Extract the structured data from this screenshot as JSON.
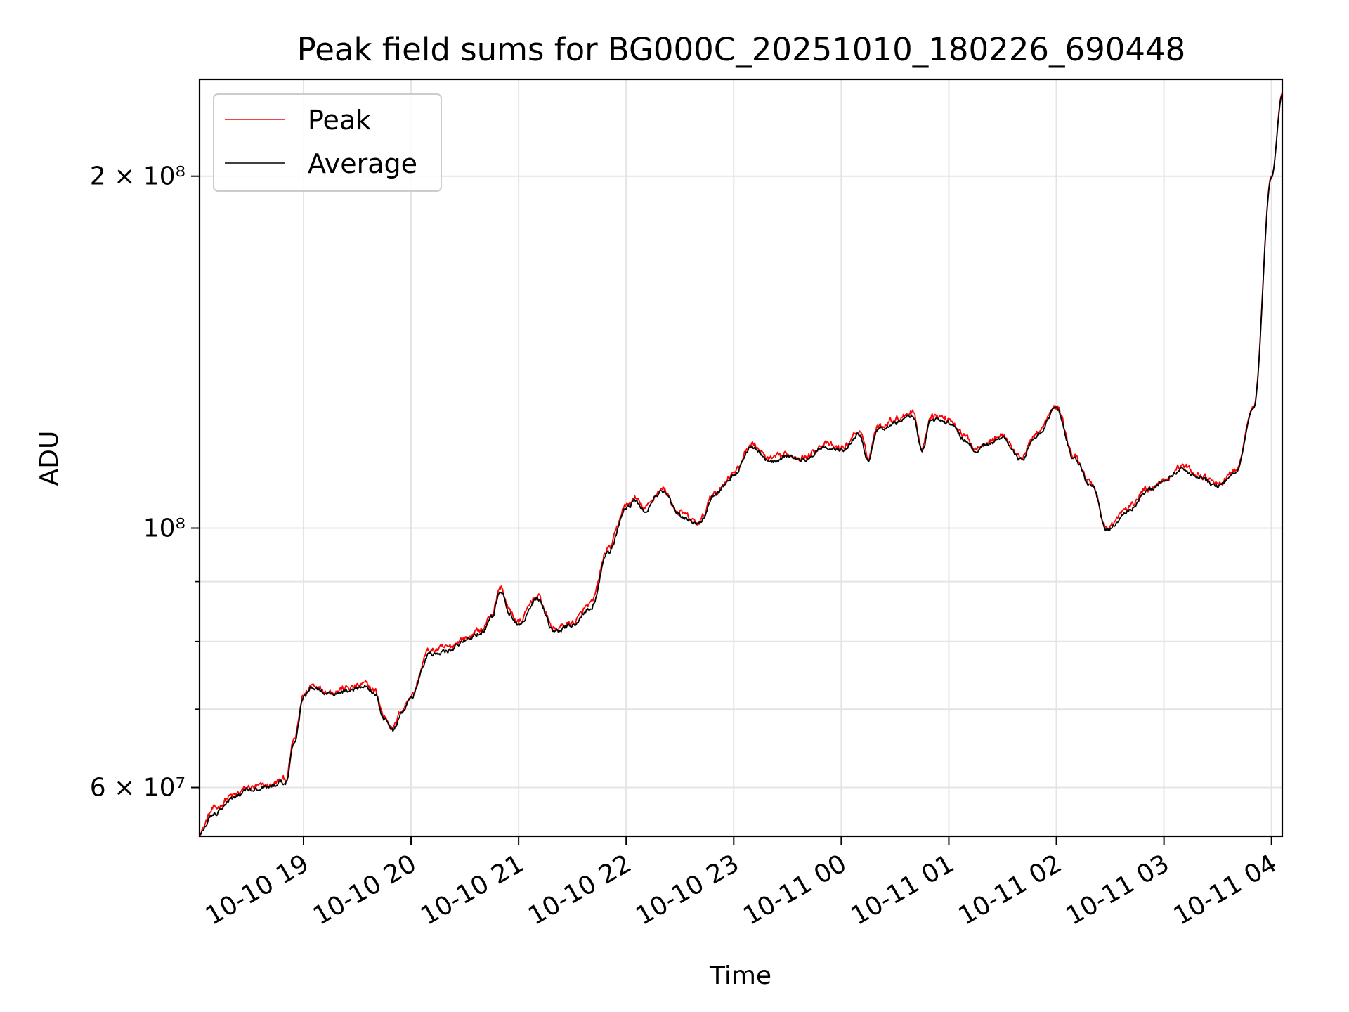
{
  "chart_data": {
    "type": "line",
    "title": "Peak field sums for BG000C_20251010_180226_690448",
    "xlabel": "Time",
    "ylabel": "ADU",
    "yscale": "log",
    "grid": true,
    "legend_position": "top-left",
    "xlim": [
      "2025-10-10 18:02",
      "2025-10-11 04:06"
    ],
    "ylim": [
      54500000,
      242000000
    ],
    "x_ticks": [
      "10-10 19",
      "10-10 20",
      "10-10 21",
      "10-10 22",
      "10-10 23",
      "10-11 00",
      "10-11 01",
      "10-11 02",
      "10-11 03",
      "10-11 04"
    ],
    "y_ticks": [
      {
        "value": 60000000,
        "label": "6 × 10⁷"
      },
      {
        "value": 100000000,
        "label": "10⁸"
      },
      {
        "value": 200000000,
        "label": "2 × 10⁸"
      }
    ],
    "y_minor_ticks": [
      70000000,
      80000000,
      90000000
    ],
    "series": [
      {
        "name": "Peak",
        "color": "#ff0000",
        "noise": 0.013,
        "x": [
          "2025-10-10 18:02",
          "2025-10-10 18:10",
          "2025-10-10 18:20",
          "2025-10-10 18:30",
          "2025-10-10 18:40",
          "2025-10-10 18:50",
          "2025-10-10 18:55",
          "2025-10-10 19:00",
          "2025-10-10 19:05",
          "2025-10-10 19:15",
          "2025-10-10 19:25",
          "2025-10-10 19:35",
          "2025-10-10 19:40",
          "2025-10-10 19:45",
          "2025-10-10 19:50",
          "2025-10-10 19:55",
          "2025-10-10 20:00",
          "2025-10-10 20:10",
          "2025-10-10 20:20",
          "2025-10-10 20:30",
          "2025-10-10 20:40",
          "2025-10-10 20:45",
          "2025-10-10 20:50",
          "2025-10-10 20:55",
          "2025-10-10 21:00",
          "2025-10-10 21:10",
          "2025-10-10 21:20",
          "2025-10-10 21:30",
          "2025-10-10 21:40",
          "2025-10-10 21:50",
          "2025-10-10 22:00",
          "2025-10-10 22:05",
          "2025-10-10 22:10",
          "2025-10-10 22:20",
          "2025-10-10 22:30",
          "2025-10-10 22:40",
          "2025-10-10 22:50",
          "2025-10-10 23:00",
          "2025-10-10 23:10",
          "2025-10-10 23:20",
          "2025-10-10 23:30",
          "2025-10-10 23:40",
          "2025-10-10 23:50",
          "2025-10-11 00:00",
          "2025-10-11 00:10",
          "2025-10-11 00:15",
          "2025-10-11 00:20",
          "2025-10-11 00:30",
          "2025-10-11 00:40",
          "2025-10-11 00:45",
          "2025-10-11 00:50",
          "2025-10-11 01:00",
          "2025-10-11 01:10",
          "2025-10-11 01:15",
          "2025-10-11 01:20",
          "2025-10-11 01:30",
          "2025-10-11 01:40",
          "2025-10-11 01:50",
          "2025-10-11 02:00",
          "2025-10-11 02:10",
          "2025-10-11 02:20",
          "2025-10-11 02:28",
          "2025-10-11 02:40",
          "2025-10-11 02:50",
          "2025-10-11 03:00",
          "2025-10-11 03:10",
          "2025-10-11 03:20",
          "2025-10-11 03:30",
          "2025-10-11 03:40",
          "2025-10-11 03:50",
          "2025-10-11 04:00",
          "2025-10-11 04:06"
        ],
        "y": [
          55000000,
          57500000,
          59000000,
          60000000,
          60200000,
          61000000,
          66000000,
          72000000,
          73500000,
          72500000,
          73000000,
          73500000,
          72500000,
          69000000,
          67500000,
          70000000,
          72000000,
          78500000,
          79000000,
          80500000,
          82000000,
          84500000,
          89000000,
          85000000,
          83000000,
          87500000,
          82000000,
          83000000,
          86000000,
          96000000,
          104500000,
          106000000,
          104000000,
          108000000,
          103000000,
          101000000,
          107500000,
          111500000,
          118000000,
          114500000,
          115500000,
          115000000,
          118000000,
          117000000,
          121000000,
          115000000,
          122000000,
          124000000,
          126000000,
          117000000,
          125000000,
          124000000,
          119500000,
          117000000,
          118500000,
          120000000,
          115000000,
          121000000,
          127000000,
          115000000,
          109000000,
          100000000,
          104000000,
          108000000,
          110000000,
          113000000,
          111000000,
          109000000,
          112000000,
          127000000,
          200000000,
          235000000
        ]
      },
      {
        "name": "Average",
        "color": "#000000",
        "noise": 0.009,
        "x": [
          "2025-10-10 18:02",
          "2025-10-10 18:10",
          "2025-10-10 18:20",
          "2025-10-10 18:30",
          "2025-10-10 18:40",
          "2025-10-10 18:50",
          "2025-10-10 18:55",
          "2025-10-10 19:00",
          "2025-10-10 19:05",
          "2025-10-10 19:15",
          "2025-10-10 19:25",
          "2025-10-10 19:35",
          "2025-10-10 19:40",
          "2025-10-10 19:45",
          "2025-10-10 19:50",
          "2025-10-10 19:55",
          "2025-10-10 20:00",
          "2025-10-10 20:10",
          "2025-10-10 20:20",
          "2025-10-10 20:30",
          "2025-10-10 20:40",
          "2025-10-10 20:45",
          "2025-10-10 20:50",
          "2025-10-10 20:55",
          "2025-10-10 21:00",
          "2025-10-10 21:10",
          "2025-10-10 21:20",
          "2025-10-10 21:30",
          "2025-10-10 21:40",
          "2025-10-10 21:50",
          "2025-10-10 22:00",
          "2025-10-10 22:05",
          "2025-10-10 22:10",
          "2025-10-10 22:20",
          "2025-10-10 22:30",
          "2025-10-10 22:40",
          "2025-10-10 22:50",
          "2025-10-10 23:00",
          "2025-10-10 23:10",
          "2025-10-10 23:20",
          "2025-10-10 23:30",
          "2025-10-10 23:40",
          "2025-10-10 23:50",
          "2025-10-11 00:00",
          "2025-10-11 00:10",
          "2025-10-11 00:15",
          "2025-10-11 00:20",
          "2025-10-11 00:30",
          "2025-10-11 00:40",
          "2025-10-11 00:45",
          "2025-10-11 00:50",
          "2025-10-11 01:00",
          "2025-10-11 01:10",
          "2025-10-11 01:15",
          "2025-10-11 01:20",
          "2025-10-11 01:30",
          "2025-10-11 01:40",
          "2025-10-11 01:50",
          "2025-10-11 02:00",
          "2025-10-11 02:10",
          "2025-10-11 02:20",
          "2025-10-11 02:28",
          "2025-10-11 02:40",
          "2025-10-11 02:50",
          "2025-10-11 03:00",
          "2025-10-11 03:10",
          "2025-10-11 03:20",
          "2025-10-11 03:30",
          "2025-10-11 03:40",
          "2025-10-11 03:50",
          "2025-10-11 04:00",
          "2025-10-11 04:06"
        ],
        "y": [
          54800000,
          57000000,
          58700000,
          59700000,
          60000000,
          60700000,
          65700000,
          71600000,
          73100000,
          72100000,
          72600000,
          73100000,
          72100000,
          68600000,
          67100000,
          69600000,
          71600000,
          78000000,
          78500000,
          80000000,
          81500000,
          84000000,
          88500000,
          84500000,
          82600000,
          87000000,
          81600000,
          82600000,
          85500000,
          95500000,
          104000000,
          105500000,
          103500000,
          107500000,
          102500000,
          100600000,
          107000000,
          111000000,
          117400000,
          114000000,
          115000000,
          114400000,
          117400000,
          116400000,
          120200000,
          114400000,
          121200000,
          123000000,
          125000000,
          116400000,
          124000000,
          123000000,
          118800000,
          116400000,
          117800000,
          119400000,
          114400000,
          120400000,
          126400000,
          114400000,
          108500000,
          99600000,
          103500000,
          107500000,
          109500000,
          112500000,
          110500000,
          108500000,
          111500000,
          126500000,
          199500000,
          234500000
        ]
      }
    ]
  }
}
